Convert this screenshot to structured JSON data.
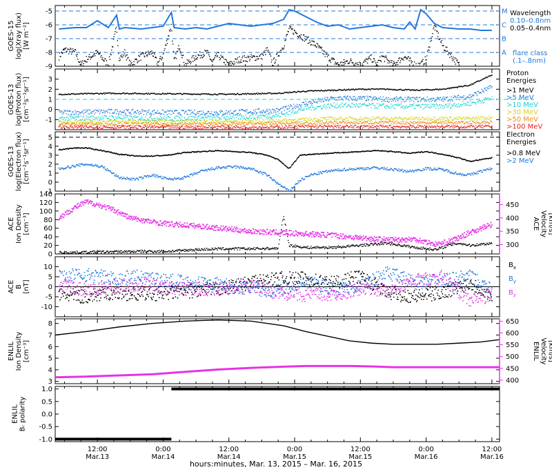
{
  "colors": {
    "black": "#000000",
    "blue": "#1e78dc",
    "magenta": "#e632e6",
    "cyan": "#14d2d2",
    "yellow": "#d2d214",
    "orange": "#f08c14",
    "red": "#e61e1e"
  },
  "x_axis": {
    "tick_times": [
      "12:00",
      "0:00",
      "12:00",
      "0:00",
      "12:00",
      "0:00",
      "12:00"
    ],
    "tick_dates": [
      "Mar.13",
      "Mar.14",
      "Mar.14",
      "Mar.15",
      "Mar.15",
      "Mar.16",
      "Mar.16"
    ],
    "tick_hours": [
      12,
      24,
      36,
      48,
      60,
      72,
      84
    ],
    "range_hours": [
      4.3,
      85.4
    ],
    "title": "hours:minutes, Mar. 13, 2015 – Mar. 16, 2015"
  },
  "chart_data": [
    {
      "type": "line",
      "ylabel": [
        "GOES-15",
        "log(Xray flux)",
        "[W m⁻²]"
      ],
      "ylim": [
        -9,
        -4.6
      ],
      "yticks": [
        -9,
        -8,
        -7,
        -6,
        -5
      ],
      "grid": "dashed flare-class levels",
      "right_labels": [
        "M",
        "C",
        "B",
        "A"
      ],
      "right_label_levels": [
        -5,
        -6,
        -7,
        -8
      ],
      "legend_title": "Wavelength",
      "legend": [
        {
          "label": "0.10–0.8nm",
          "color": "#1e78dc"
        },
        {
          "label": "0.05–0.4nm",
          "color": "#000000"
        }
      ],
      "legend_note": [
        "flare class",
        "(.1–.8nm)"
      ],
      "series": [
        {
          "name": "0.10–0.8nm",
          "x": [
            5,
            8,
            10,
            12,
            14,
            15.5,
            16,
            17,
            20,
            22,
            24,
            25.5,
            26,
            28,
            30,
            32,
            34,
            36,
            38,
            40,
            42,
            44,
            46,
            47,
            48,
            50,
            52,
            54,
            56,
            58,
            60,
            62,
            64,
            66,
            68,
            69,
            70,
            71,
            72,
            73.5,
            75,
            78,
            80,
            82,
            84
          ],
          "values": [
            -6.3,
            -6.2,
            -6.2,
            -5.7,
            -6.2,
            -5.3,
            -6.3,
            -6.2,
            -6.3,
            -6.2,
            -6.1,
            -5.1,
            -6.2,
            -6.3,
            -6.2,
            -6.3,
            -6.1,
            -5.9,
            -6.0,
            -6.1,
            -6.0,
            -5.9,
            -5.6,
            -4.9,
            -5.0,
            -5.4,
            -5.8,
            -6.1,
            -6.0,
            -6.3,
            -6.2,
            -6.1,
            -6.0,
            -6.2,
            -6.3,
            -5.8,
            -6.3,
            -4.9,
            -5.2,
            -5.9,
            -6.2,
            -6.3,
            -6.3,
            -6.4,
            -6.4
          ]
        },
        {
          "name": "0.05–0.4nm",
          "x": [
            5,
            6,
            8,
            9,
            10,
            12,
            14,
            15.5,
            16,
            17,
            18,
            20,
            22,
            23,
            24,
            25.5,
            26,
            27,
            28,
            30,
            32,
            33,
            34,
            36,
            38,
            40,
            42,
            43,
            44,
            46,
            47,
            48,
            50,
            52,
            54,
            56,
            58,
            60,
            62,
            63,
            64,
            66,
            68,
            70,
            71,
            72,
            73.5,
            75,
            78
          ],
          "values": [
            -8.3,
            -7.8,
            -8.0,
            -8.9,
            -8.5,
            -8.0,
            -8.9,
            -6.2,
            -8.5,
            -8.0,
            -8.9,
            -8.3,
            -8.0,
            -8.8,
            -8.2,
            -6.0,
            -8.7,
            -7.5,
            -8.9,
            -8.3,
            -8.0,
            -8.7,
            -8.2,
            -8.9,
            -8.5,
            -8.4,
            -8.3,
            -7.8,
            -8.8,
            -7.5,
            -6.3,
            -6.5,
            -7.0,
            -7.5,
            -8.3,
            -8.9,
            -8.6,
            -8.9,
            -8.4,
            -8.9,
            -8.3,
            -8.9,
            -8.3,
            -8.9,
            -8.9,
            -8.5,
            -6.1,
            -7.5,
            -8.9
          ]
        }
      ]
    },
    {
      "type": "scatter",
      "ylabel": [
        "GOES-13",
        "log(Proton flux)",
        "[cm⁻²s⁻¹sr⁻¹]"
      ],
      "ylim": [
        -2,
        4
      ],
      "yticks": [
        -1,
        0,
        1,
        2,
        3
      ],
      "threshold_line": 1,
      "legend_title": [
        "Proton",
        "Energies"
      ],
      "legend": [
        {
          "label": ">1 MeV",
          "color": "#000000"
        },
        {
          "label": ">5 MeV",
          "color": "#1e78dc"
        },
        {
          "label": ">10 MeV",
          "color": "#14d2d2"
        },
        {
          "label": ">30 MeV",
          "color": "#d2d214"
        },
        {
          "label": ">50 MeV",
          "color": "#f08c14"
        },
        {
          "label": ">100 MeV",
          "color": "#e61e1e"
        }
      ],
      "series": [
        {
          "name": ">1 MeV",
          "x": [
            5,
            15,
            25,
            35,
            45,
            50,
            55,
            60,
            65,
            70,
            75,
            80,
            84
          ],
          "values": [
            1.5,
            1.6,
            1.55,
            1.5,
            1.6,
            1.8,
            1.9,
            2.0,
            2.0,
            1.9,
            2.0,
            2.4,
            3.4
          ]
        },
        {
          "name": ">5 MeV",
          "x": [
            5,
            15,
            25,
            35,
            45,
            50,
            55,
            60,
            65,
            70,
            75,
            80,
            84
          ],
          "values": [
            -0.3,
            -0.2,
            -0.3,
            -0.3,
            -0.1,
            0.6,
            1.1,
            1.1,
            1.0,
            1.0,
            1.0,
            1.3,
            2.2
          ]
        },
        {
          "name": ">10 MeV",
          "x": [
            5,
            15,
            25,
            35,
            45,
            50,
            55,
            60,
            65,
            70,
            75,
            80,
            84
          ],
          "values": [
            -0.9,
            -0.8,
            -0.9,
            -0.8,
            -0.6,
            0.1,
            0.4,
            0.4,
            0.3,
            0.3,
            0.3,
            0.6,
            1.1
          ]
        },
        {
          "name": ">30 MeV",
          "x": [
            5,
            15,
            25,
            35,
            45,
            50,
            55,
            60,
            65,
            70,
            75,
            80,
            84
          ],
          "values": [
            -1.2,
            -1.2,
            -1.2,
            -1.2,
            -1.1,
            -1.0,
            -0.9,
            -0.9,
            -0.9,
            -0.9,
            -0.9,
            -0.9,
            -0.8
          ]
        },
        {
          "name": ">50 MeV",
          "x": [
            5,
            15,
            25,
            35,
            45,
            50,
            55,
            60,
            65,
            70,
            75,
            80,
            84
          ],
          "values": [
            -1.45,
            -1.45,
            -1.45,
            -1.45,
            -1.4,
            -1.35,
            -1.3,
            -1.3,
            -1.3,
            -1.3,
            -1.3,
            -1.3,
            -1.25
          ]
        },
        {
          "name": ">100 MeV",
          "x": [
            5,
            15,
            25,
            35,
            45,
            50,
            55,
            60,
            65,
            70,
            75,
            80,
            84
          ],
          "values": [
            -1.75,
            -1.75,
            -1.75,
            -1.75,
            -1.75,
            -1.7,
            -1.7,
            -1.7,
            -1.7,
            -1.7,
            -1.7,
            -1.7,
            -1.7
          ]
        }
      ]
    },
    {
      "type": "scatter",
      "ylabel": [
        "GOES-13",
        "log(Electron flux)",
        "[cm⁻²s⁻¹sr⁻¹]"
      ],
      "ylim": [
        -1,
        5.6
      ],
      "yticks": [
        -1,
        0,
        1,
        2,
        3,
        4,
        5
      ],
      "threshold_line": 5,
      "legend_title": [
        "Electron",
        "Energies"
      ],
      "legend": [
        {
          "label": ">0.8 MeV",
          "color": "#000000"
        },
        {
          "label": ">2 MeV",
          "color": "#1e78dc"
        }
      ],
      "series": [
        {
          "name": ">0.8 MeV",
          "x": [
            5,
            8,
            10,
            13,
            16,
            19,
            22,
            25,
            28,
            31,
            34,
            37,
            40,
            43,
            45,
            47,
            49,
            51,
            54,
            57,
            60,
            63,
            66,
            69,
            72,
            75,
            78,
            80,
            82,
            84
          ],
          "values": [
            3.6,
            3.8,
            3.8,
            3.5,
            3.1,
            2.9,
            2.9,
            3.0,
            3.3,
            3.4,
            3.5,
            3.4,
            3.3,
            3.0,
            2.5,
            1.5,
            3.0,
            3.1,
            3.2,
            3.3,
            3.4,
            3.5,
            3.4,
            3.2,
            3.4,
            3.1,
            2.7,
            2.3,
            2.5,
            2.7
          ]
        },
        {
          "name": ">2 MeV",
          "x": [
            5,
            8,
            10,
            13,
            16,
            19,
            22,
            25,
            28,
            31,
            34,
            37,
            40,
            43,
            45,
            47,
            49,
            51,
            54,
            57,
            60,
            63,
            66,
            69,
            72,
            75,
            78,
            80,
            82,
            84
          ],
          "values": [
            1.5,
            1.8,
            2.0,
            1.7,
            0.5,
            0.3,
            0.8,
            0.3,
            0.5,
            1.2,
            1.6,
            1.7,
            1.5,
            0.8,
            -0.2,
            -1.0,
            0.2,
            0.8,
            1.2,
            1.4,
            1.5,
            1.6,
            1.4,
            1.2,
            1.5,
            1.4,
            0.9,
            0.8,
            1.2,
            1.5
          ]
        }
      ]
    },
    {
      "type": "scatter",
      "ylabel": [
        "ACE",
        "Ion Density",
        "[cm⁻³]"
      ],
      "ylim": [
        0,
        140
      ],
      "yticks": [
        0,
        20,
        40,
        60,
        80,
        100,
        120,
        140
      ],
      "y2label": [
        "ACE",
        "Velocity",
        "[km/s]"
      ],
      "y2lim": [
        265,
        490
      ],
      "y2ticks": [
        300,
        350,
        400,
        450
      ],
      "series": [
        {
          "name": "Ion Density",
          "x": [
            5,
            10,
            15,
            20,
            25,
            30,
            35,
            40,
            45,
            46,
            47,
            50,
            55,
            60,
            65,
            70,
            74,
            76,
            78,
            80,
            84
          ],
          "values": [
            3,
            4,
            5,
            6,
            6,
            10,
            12,
            12,
            13,
            90,
            20,
            15,
            15,
            20,
            25,
            15,
            10,
            20,
            25,
            20,
            25
          ]
        },
        {
          "name": "Velocity",
          "x": [
            5,
            8,
            10,
            12,
            15,
            18,
            22,
            26,
            30,
            35,
            40,
            45,
            50,
            55,
            60,
            65,
            70,
            72,
            74,
            76,
            78,
            80,
            82,
            84
          ],
          "values": [
            400,
            440,
            460,
            450,
            430,
            400,
            385,
            375,
            370,
            360,
            350,
            345,
            340,
            335,
            325,
            318,
            320,
            310,
            300,
            310,
            325,
            345,
            360,
            375
          ]
        }
      ]
    },
    {
      "type": "scatter",
      "ylabel": [
        "ACE",
        "B",
        "[nT]"
      ],
      "ylim": [
        -15,
        15
      ],
      "yticks": [
        -10,
        -5,
        0,
        5,
        10
      ],
      "legend": [
        {
          "label": "B",
          "sub": "x",
          "color": "#000000"
        },
        {
          "label": "B",
          "sub": "y",
          "color": "#1e78dc"
        },
        {
          "label": "B",
          "sub": "z",
          "color": "#e632e6"
        }
      ],
      "series": [
        {
          "name": "Bx",
          "x": [
            5,
            10,
            15,
            20,
            25,
            30,
            35,
            40,
            45,
            50,
            55,
            60,
            65,
            70,
            75,
            80,
            84
          ],
          "values": [
            -4,
            -5,
            -3,
            -4,
            -3,
            -2,
            -1,
            2,
            4,
            4,
            2,
            5,
            -3,
            -5,
            -3,
            2,
            -5
          ]
        },
        {
          "name": "By",
          "x": [
            5,
            10,
            15,
            20,
            25,
            30,
            35,
            40,
            45,
            50,
            55,
            60,
            65,
            70,
            75,
            80,
            84
          ],
          "values": [
            5,
            6,
            4,
            5,
            3,
            2,
            1,
            -1,
            -2,
            2,
            -1,
            0,
            7,
            2,
            3,
            5,
            -2
          ]
        },
        {
          "name": "Bz",
          "x": [
            5,
            10,
            15,
            20,
            25,
            30,
            35,
            40,
            45,
            50,
            55,
            60,
            65,
            70,
            75,
            80,
            84
          ],
          "values": [
            1,
            -2,
            0,
            1,
            -1,
            -1,
            -1,
            0,
            -3,
            -4,
            -4,
            -1,
            -2,
            3,
            5,
            -7,
            -4
          ]
        }
      ]
    },
    {
      "type": "line",
      "ylabel": [
        "ENLIL",
        "Ion Density",
        "[cm⁻³]"
      ],
      "ylim": [
        2.8,
        8.4
      ],
      "yticks": [
        3,
        4,
        5,
        6,
        7,
        8
      ],
      "y2label": [
        "ENLIL",
        "Velocity",
        "[km/s]"
      ],
      "y2lim": [
        385,
        660
      ],
      "y2ticks": [
        400,
        450,
        500,
        550,
        600,
        650
      ],
      "series": [
        {
          "name": "Ion Density",
          "x": [
            4.3,
            10,
            16,
            22,
            28,
            34,
            40,
            46,
            50,
            54,
            58,
            62,
            66,
            70,
            74,
            78,
            82,
            85.4
          ],
          "values": [
            7.0,
            7.3,
            7.7,
            8.0,
            8.2,
            8.3,
            8.2,
            7.8,
            7.3,
            6.9,
            6.5,
            6.3,
            6.2,
            6.2,
            6.2,
            6.3,
            6.4,
            6.6
          ]
        },
        {
          "name": "Velocity",
          "x": [
            4.3,
            10,
            16,
            22,
            28,
            34,
            40,
            46,
            50,
            54,
            58,
            62,
            66,
            70,
            74,
            78,
            82,
            85.4
          ],
          "values": [
            412,
            415,
            420,
            425,
            435,
            445,
            452,
            457,
            460,
            460,
            460,
            458,
            455,
            455,
            455,
            455,
            455,
            455
          ]
        }
      ]
    },
    {
      "type": "line",
      "ylabel": [
        "ENLIL",
        "Bᵣ polarity"
      ],
      "ylim": [
        -1.1,
        1.1
      ],
      "yticks": [
        -1.0,
        -0.5,
        0.0,
        0.5,
        1.0
      ],
      "ytick_labels": [
        "-1.0",
        "-0.5",
        "0.0",
        "0.5",
        "1.0"
      ],
      "series": [
        {
          "name": "polarity",
          "x": [
            4.3,
            25.5,
            25.5,
            85.4
          ],
          "values": [
            -1,
            -1,
            1,
            1
          ]
        }
      ]
    }
  ]
}
